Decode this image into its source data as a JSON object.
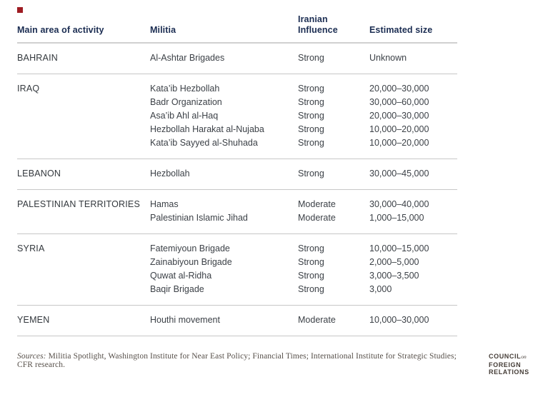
{
  "page": {
    "background": "#ffffff",
    "accent_color": "#9e1c23",
    "header_text_color": "#1b2d52",
    "body_text_color": "#3c4147",
    "rule_color": "#c7c7c7"
  },
  "chart_data": {
    "type": "table",
    "columns": [
      "Main area of activity",
      "Militia",
      "Iranian Influence",
      "Estimated size"
    ],
    "sections": [
      {
        "area": "BAHRAIN",
        "rows": [
          {
            "militia": "Al-Ashtar Brigades",
            "influence": "Strong",
            "size": "Unknown"
          }
        ]
      },
      {
        "area": "IRAQ",
        "rows": [
          {
            "militia": "Kata’ib Hezbollah",
            "influence": "Strong",
            "size": "20,000–30,000"
          },
          {
            "militia": "Badr Organization",
            "influence": "Strong",
            "size": "30,000–60,000"
          },
          {
            "militia": "Asa’ib Ahl al-Haq",
            "influence": "Strong",
            "size": "20,000–30,000"
          },
          {
            "militia": "Hezbollah Harakat al-Nujaba",
            "influence": "Strong",
            "size": "10,000–20,000"
          },
          {
            "militia": "Kata’ib Sayyed al-Shuhada",
            "influence": "Strong",
            "size": "10,000–20,000"
          }
        ]
      },
      {
        "area": "LEBANON",
        "rows": [
          {
            "militia": "Hezbollah",
            "influence": "Strong",
            "size": "30,000–45,000"
          }
        ]
      },
      {
        "area": "PALESTINIAN TERRITORIES",
        "rows": [
          {
            "militia": "Hamas",
            "influence": "Moderate",
            "size": "30,000–40,000"
          },
          {
            "militia": "Palestinian Islamic Jihad",
            "influence": "Moderate",
            "size": "1,000–15,000"
          }
        ]
      },
      {
        "area": "SYRIA",
        "rows": [
          {
            "militia": "Fatemiyoun Brigade",
            "influence": "Strong",
            "size": "10,000–15,000"
          },
          {
            "militia": "Zainabiyoun Brigade",
            "influence": "Strong",
            "size": "2,000–5,000"
          },
          {
            "militia": "Quwat al-Ridha",
            "influence": "Strong",
            "size": "3,000–3,500"
          },
          {
            "militia": "Baqir Brigade",
            "influence": "Strong",
            "size": "3,000"
          }
        ]
      },
      {
        "area": "YEMEN",
        "rows": [
          {
            "militia": "Houthi movement",
            "influence": "Moderate",
            "size": "10,000–30,000"
          }
        ]
      }
    ]
  },
  "footer": {
    "sources_label": "Sources:",
    "sources_text": " Militia Spotlight, Washington Institute for Near East Policy; Financial Times; International Institute for Strategic Studies; CFR research.",
    "logo": {
      "line1": "COUNCIL",
      "line1_small": "on",
      "line2": "FOREIGN",
      "line3": "RELATIONS"
    }
  }
}
